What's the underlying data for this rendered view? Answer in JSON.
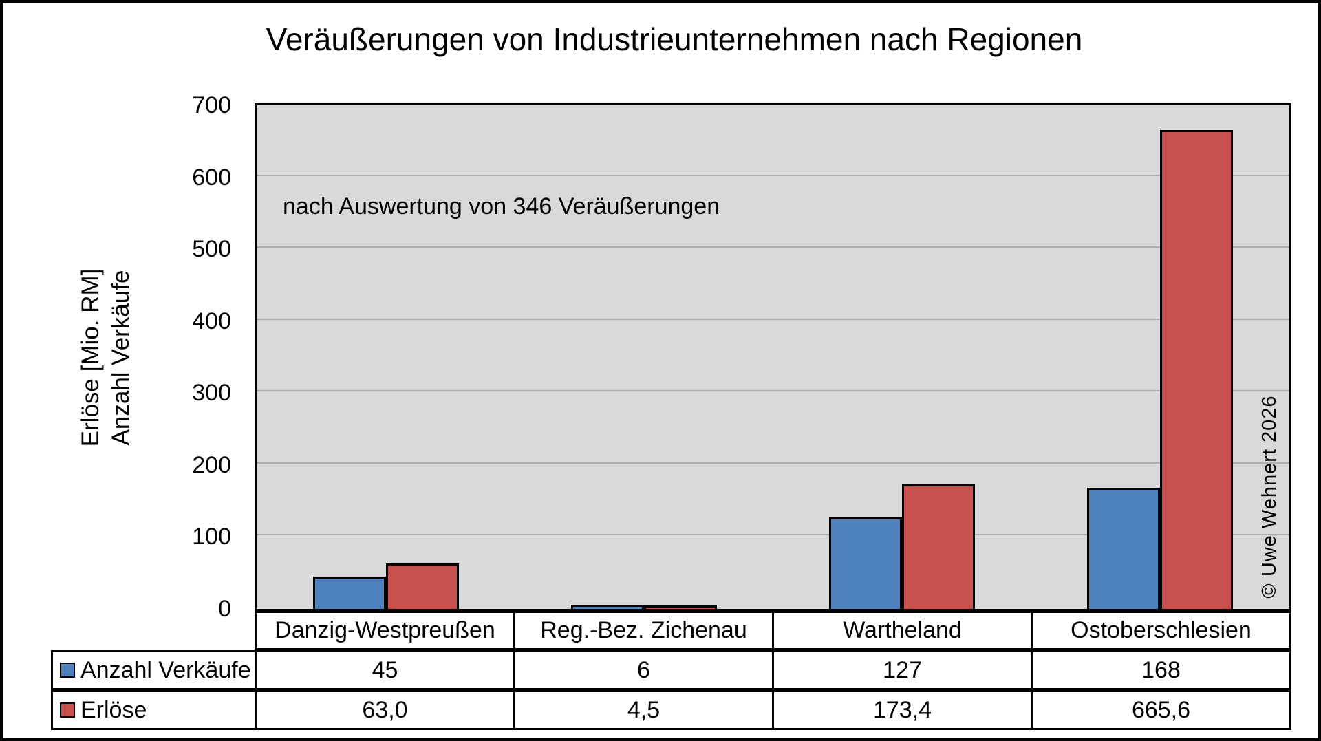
{
  "title": "Veräußerungen von Industrieunternehmen nach Regionen",
  "annotation": "nach Auswertung von 346 Veräußerungen",
  "watermark": "© Uwe Wehnert 2026",
  "y_axis_title_line1": "Erlöse [Mio. RM]",
  "y_axis_title_line2": "Anzahl Verkäufe",
  "colors": {
    "series_anzahl_verkaeufe": "#4F81BD",
    "series_erloese": "#C6514F",
    "bar_border": "#000000",
    "plot_background": "#D9D9D9",
    "gridline": "#ABABAB",
    "figure_border": "#000000"
  },
  "chart_data": {
    "type": "bar",
    "title": "Veräußerungen von Industrieunternehmen nach Regionen",
    "subtitle_annotation": "nach Auswertung von 346 Veräußerungen",
    "watermark": "© Uwe Wehnert 2026",
    "categories": [
      "Danzig-Westpreußen",
      "Reg.-Bez. Zichenau",
      "Wartheland",
      "Ostoberschlesien"
    ],
    "series": [
      {
        "name": "Anzahl Verkäufe",
        "color": "#4F81BD",
        "values": [
          45,
          6,
          127,
          168
        ],
        "labels": [
          "45",
          "6",
          "127",
          "168"
        ]
      },
      {
        "name": "Erlöse",
        "color": "#C6514F",
        "values": [
          63.0,
          4.5,
          173.4,
          665.6
        ],
        "labels": [
          "63,0",
          "4,5",
          "173,4",
          "665,6"
        ]
      }
    ],
    "ylabel_lines": [
      "Erlöse [Mio. RM]",
      "Anzahl Verkäufe"
    ],
    "xlabel": "",
    "ylim": [
      0,
      700
    ],
    "ytick_step": 100,
    "yticks": [
      0,
      100,
      200,
      300,
      400,
      500,
      600,
      700
    ],
    "grid": true,
    "legend_position": "data-table-left"
  }
}
